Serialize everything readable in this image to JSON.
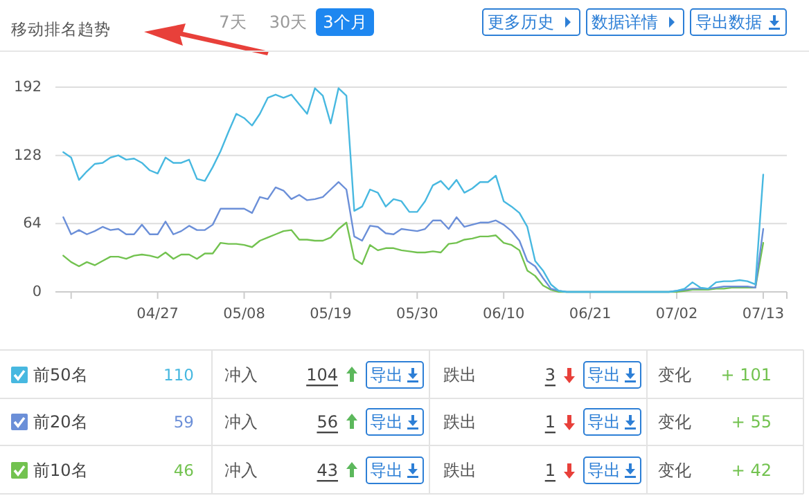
{
  "chart_data": [
    {
      "type": "line",
      "title": "移动排名趋势",
      "x": [
        "--04-15",
        "--04-16",
        "--04-17",
        "--04-18",
        "--04-19",
        "--04-20",
        "--04-21",
        "--04-22",
        "--04-23",
        "--04-24",
        "--04-25",
        "--04-26",
        "--04-27",
        "--04-28",
        "--04-29",
        "--04-30",
        "--05-01",
        "--05-02",
        "--05-03",
        "--05-04",
        "--05-05",
        "--05-06",
        "--05-07",
        "--05-08",
        "--05-09",
        "--05-10",
        "--05-11",
        "--05-12",
        "--05-13",
        "--05-14",
        "--05-15",
        "--05-16",
        "--05-17",
        "--05-18",
        "--05-19",
        "--05-20",
        "--05-21",
        "--05-22",
        "--05-23",
        "--05-24",
        "--05-25",
        "--05-26",
        "--05-27",
        "--05-28",
        "--05-29",
        "--05-30",
        "--05-31",
        "--06-01",
        "--06-02",
        "--06-03",
        "--06-04",
        "--06-05",
        "--06-06",
        "--06-07",
        "--06-08",
        "--06-09",
        "--06-10",
        "--06-11",
        "--06-12",
        "--06-13",
        "--06-14",
        "--06-15",
        "--06-16",
        "--06-17",
        "--06-18",
        "--06-19",
        "--06-20",
        "--06-21",
        "--06-22",
        "--06-23",
        "--06-24",
        "--06-25",
        "--06-26",
        "--06-27",
        "--06-28",
        "--06-29",
        "--06-30",
        "--07-01",
        "--07-02",
        "--07-03",
        "--07-04",
        "--07-05",
        "--07-06",
        "--07-07",
        "--07-08",
        "--07-09",
        "--07-10",
        "--07-11",
        "--07-12",
        "--07-13"
      ],
      "series": [
        {
          "name": "前50名",
          "color": "#47b8e0",
          "values": [
            131,
            126,
            105,
            113,
            120,
            121,
            126,
            128,
            124,
            125,
            121,
            114,
            111,
            126,
            121,
            121,
            124,
            106,
            104,
            117,
            132,
            150,
            167,
            163,
            156,
            167,
            182,
            185,
            182,
            185,
            176,
            167,
            191,
            184,
            158,
            191,
            184,
            76,
            80,
            96,
            93,
            80,
            87,
            85,
            75,
            75,
            85,
            100,
            104,
            96,
            105,
            93,
            97,
            103,
            103,
            109,
            85,
            80,
            74,
            61,
            29,
            20,
            7,
            1,
            0,
            0,
            0,
            0,
            0,
            0,
            0,
            0,
            0,
            0,
            0,
            0,
            0,
            0,
            1,
            3,
            9,
            4,
            3,
            9,
            10,
            10,
            11,
            10,
            7,
            110
          ]
        },
        {
          "name": "前20名",
          "color": "#6b8fd8",
          "values": [
            70,
            54,
            58,
            54,
            57,
            61,
            58,
            59,
            54,
            54,
            63,
            54,
            54,
            66,
            54,
            57,
            62,
            58,
            58,
            63,
            78,
            78,
            78,
            78,
            74,
            89,
            87,
            98,
            95,
            87,
            91,
            86,
            87,
            89,
            96,
            103,
            96,
            52,
            48,
            62,
            61,
            55,
            54,
            59,
            58,
            57,
            59,
            67,
            67,
            59,
            70,
            61,
            63,
            65,
            65,
            67,
            63,
            57,
            48,
            29,
            24,
            13,
            3,
            1,
            0,
            0,
            0,
            0,
            0,
            0,
            0,
            0,
            0,
            0,
            0,
            0,
            0,
            0,
            1,
            2,
            3,
            3,
            3,
            4,
            5,
            5,
            5,
            5,
            4,
            59
          ]
        },
        {
          "name": "前10名",
          "color": "#72c24f",
          "values": [
            34,
            28,
            24,
            28,
            25,
            29,
            33,
            33,
            31,
            34,
            35,
            34,
            32,
            37,
            31,
            35,
            35,
            31,
            36,
            36,
            46,
            45,
            45,
            44,
            42,
            48,
            51,
            54,
            57,
            58,
            49,
            49,
            48,
            48,
            51,
            59,
            65,
            31,
            26,
            44,
            39,
            41,
            41,
            39,
            38,
            37,
            37,
            38,
            37,
            45,
            46,
            49,
            50,
            52,
            52,
            53,
            46,
            44,
            39,
            20,
            15,
            6,
            2,
            0,
            0,
            0,
            0,
            0,
            0,
            0,
            0,
            0,
            0,
            0,
            0,
            0,
            0,
            0,
            0,
            1,
            2,
            2,
            2,
            3,
            3,
            4,
            4,
            4,
            4,
            46
          ]
        }
      ],
      "xlim": [
        "--04-14",
        "--07-16"
      ],
      "xticks": [
        {
          "value": "--04-16",
          "label": null
        },
        {
          "value": "--04-27",
          "label": "04/27"
        },
        {
          "value": "--05-08",
          "label": "05/08"
        },
        {
          "value": "--05-19",
          "label": "05/19"
        },
        {
          "value": "--05-30",
          "label": "05/30"
        },
        {
          "value": "--06-10",
          "label": "06/10"
        },
        {
          "value": "--06-21",
          "label": "06/21"
        },
        {
          "value": "--07-02",
          "label": "07/02"
        },
        {
          "value": "--07-13",
          "label": "07/13"
        },
        {
          "value": "--07-16",
          "label": null
        }
      ],
      "ylim": [
        0,
        192
      ],
      "yticks": [
        0,
        64,
        128,
        192
      ],
      "grid": "y",
      "legend": "bottom",
      "marker": "none",
      "line_style": "solid"
    },
    {
      "type": "other",
      "annotations": [
        "7天",
        "30天",
        "3个月",
        "更多历史",
        "数据详情",
        "导出数据",
        "110",
        "冲入",
        "104",
        "导出",
        "跌出",
        "3",
        "导出",
        "变化",
        "+ 101",
        "59",
        "冲入",
        "56",
        "导出",
        "跌出",
        "1",
        "导出",
        "变化",
        "+ 55",
        "46",
        "冲入",
        "43",
        "导出",
        "跌出",
        "1",
        "导出",
        "变化",
        "+ 42"
      ]
    }
  ]
}
